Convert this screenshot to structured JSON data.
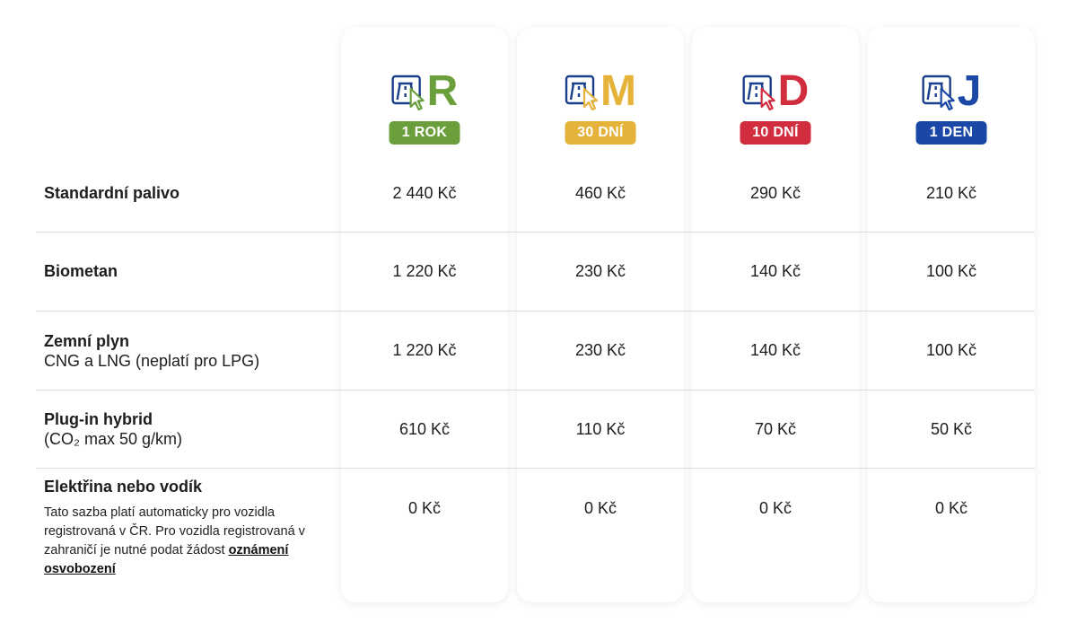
{
  "colors": {
    "R": "#6b9f3c",
    "M": "#e5b23a",
    "D": "#d22d3e",
    "J": "#1b48a6",
    "icon_outline": "#1b3f8a"
  },
  "plans": [
    {
      "letter": "R",
      "badge": "1 ROK",
      "icon": "highway-cursor-icon"
    },
    {
      "letter": "M",
      "badge": "30 DNÍ",
      "icon": "highway-cursor-icon"
    },
    {
      "letter": "D",
      "badge": "10 DNÍ",
      "icon": "highway-cursor-icon"
    },
    {
      "letter": "J",
      "badge": "1 DEN",
      "icon": "highway-cursor-icon"
    }
  ],
  "rows": [
    {
      "label": "Standardní palivo",
      "sublabel": "",
      "prices": [
        "2 440 Kč",
        "460 Kč",
        "290 Kč",
        "210 Kč"
      ]
    },
    {
      "label": "Biometan",
      "sublabel": "",
      "prices": [
        "1 220 Kč",
        "230 Kč",
        "140 Kč",
        "100 Kč"
      ]
    },
    {
      "label": "Zemní plyn",
      "sublabel": "CNG a LNG (neplatí pro LPG)",
      "prices": [
        "1 220 Kč",
        "230 Kč",
        "140 Kč",
        "100 Kč"
      ]
    },
    {
      "label": "Plug-in hybrid",
      "sublabel": "(CO₂ max 50 g/km)",
      "prices": [
        "610 Kč",
        "110 Kč",
        "70 Kč",
        "50 Kč"
      ]
    },
    {
      "label": "Elektřina nebo vodík",
      "sublabel": "",
      "prices": [
        "0 Kč",
        "0 Kč",
        "0 Kč",
        "0 Kč"
      ]
    }
  ],
  "note": {
    "text": "Tato sazba platí automaticky pro vozidla registrovaná v ČR. Pro vozidla registrovaná v zahraničí je nutné podat žádost ",
    "link": "oznámení osvobození"
  }
}
